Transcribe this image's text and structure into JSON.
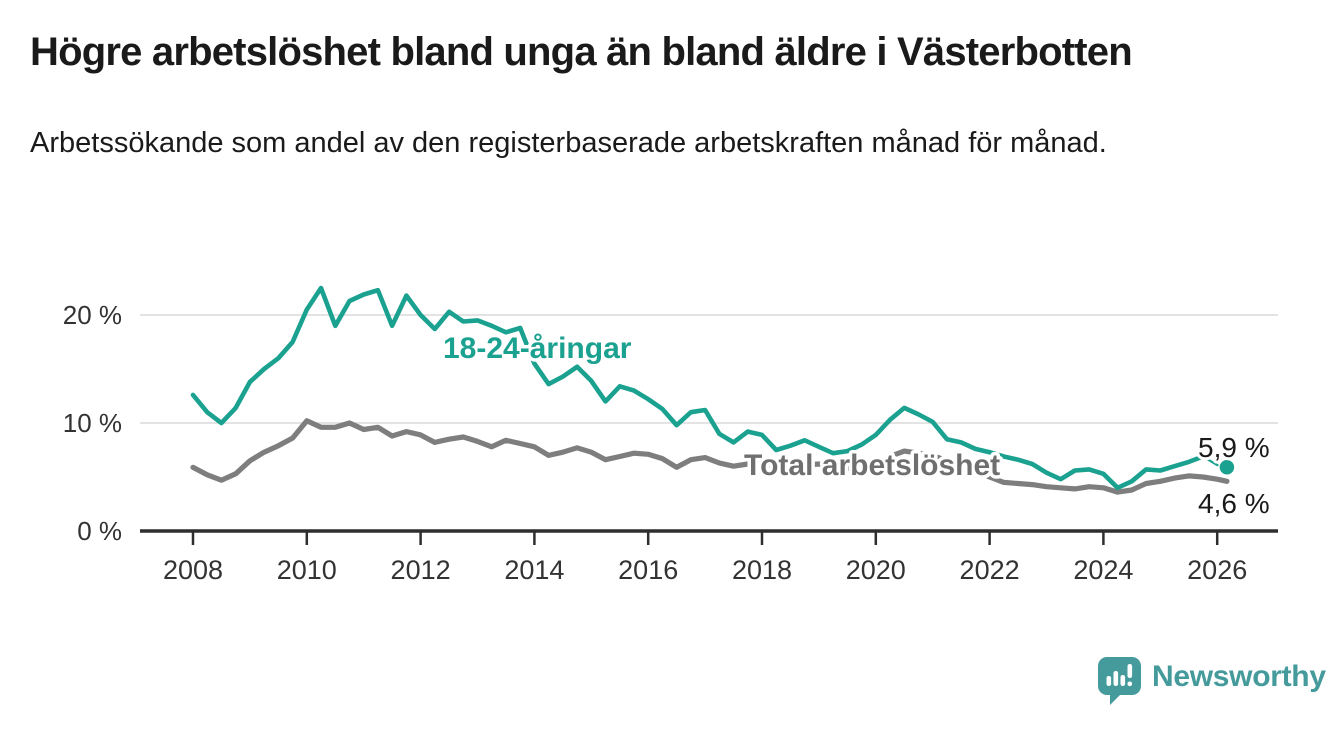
{
  "chart_data": {
    "type": "line",
    "title": "Högre arbetslöshet bland unga än bland äldre i Västerbotten",
    "subtitle": "Arbetssökande som andel av den registerbaserade arbetskraften månad för månad.",
    "xlabel": "",
    "ylabel": "",
    "y_unit": "%",
    "grid": "horizontal-only",
    "legend_position": "inline-labels",
    "xlim": [
      2007.1,
      2027.1
    ],
    "ylim": [
      0,
      23.5
    ],
    "x_ticks": [
      2008,
      2010,
      2012,
      2014,
      2016,
      2018,
      2020,
      2022,
      2024,
      2026
    ],
    "y_ticks": [
      {
        "value": 0,
        "label": "0 %"
      },
      {
        "value": 10,
        "label": "10 %"
      },
      {
        "value": 20,
        "label": "20 %"
      }
    ],
    "x": [
      2008,
      2008.25,
      2008.5,
      2008.75,
      2009,
      2009.25,
      2009.5,
      2009.75,
      2010,
      2010.25,
      2010.5,
      2010.75,
      2011,
      2011.25,
      2011.5,
      2011.75,
      2012,
      2012.25,
      2012.5,
      2012.75,
      2013,
      2013.25,
      2013.5,
      2013.75,
      2014,
      2014.25,
      2014.5,
      2014.75,
      2015,
      2015.25,
      2015.5,
      2015.75,
      2016,
      2016.25,
      2016.5,
      2016.75,
      2017,
      2017.25,
      2017.5,
      2017.75,
      2018,
      2018.25,
      2018.5,
      2018.75,
      2019,
      2019.25,
      2019.5,
      2019.75,
      2020,
      2020.25,
      2020.5,
      2020.75,
      2021,
      2021.25,
      2021.5,
      2021.75,
      2022,
      2022.25,
      2022.5,
      2022.75,
      2023,
      2023.25,
      2023.5,
      2023.75,
      2024,
      2024.25,
      2024.5,
      2024.75,
      2025,
      2025.25,
      2025.5,
      2025.75,
      2026,
      2026.17
    ],
    "series": [
      {
        "id": "youth",
        "name": "18-24-åringar",
        "color": "#1aa18f",
        "end_label": "5,9 %",
        "end_value": 5.9,
        "values": [
          12.6,
          11,
          10,
          11.4,
          13.8,
          15,
          16,
          17.5,
          20.5,
          22.5,
          19,
          21.3,
          21.9,
          22.3,
          19,
          21.8,
          20,
          18.7,
          20.3,
          19.4,
          19.5,
          19,
          18.4,
          18.8,
          15.5,
          13.6,
          14.3,
          15.2,
          13.9,
          12,
          13.4,
          13,
          12.2,
          11.3,
          9.8,
          11,
          11.2,
          9,
          8.2,
          9.2,
          8.9,
          7.5,
          7.9,
          8.4,
          7.8,
          7.2,
          7.4,
          8,
          8.9,
          10.3,
          11.4,
          10.8,
          10.1,
          8.5,
          8.2,
          7.6,
          7.3,
          6.9,
          6.6,
          6.2,
          5.4,
          4.8,
          5.6,
          5.7,
          5.3,
          4,
          4.6,
          5.7,
          5.6,
          6,
          6.4,
          6.9,
          6.1,
          5.9
        ]
      },
      {
        "id": "total",
        "name": "Total arbetslöshet",
        "color": "#7e7e7e",
        "end_label": "4,6 %",
        "end_value": 4.6,
        "values": [
          5.9,
          5.2,
          4.7,
          5.3,
          6.5,
          7.3,
          7.9,
          8.6,
          10.2,
          9.6,
          9.6,
          10,
          9.4,
          9.6,
          8.8,
          9.2,
          8.9,
          8.2,
          8.5,
          8.7,
          8.3,
          7.8,
          8.4,
          8.1,
          7.8,
          7,
          7.3,
          7.7,
          7.3,
          6.6,
          6.9,
          7.2,
          7.1,
          6.7,
          5.9,
          6.6,
          6.8,
          6.3,
          6,
          6.2,
          6.3,
          5.9,
          5.8,
          6.1,
          6.2,
          5.9,
          5.8,
          6,
          6.2,
          6.9,
          7.4,
          7.2,
          7,
          6.5,
          6.1,
          5.6,
          5,
          4.5,
          4.4,
          4.3,
          4.1,
          4,
          3.9,
          4.1,
          4,
          3.6,
          3.8,
          4.4,
          4.6,
          4.9,
          5.1,
          5,
          4.8,
          4.6
        ]
      }
    ]
  },
  "footer": {
    "brand": "Newsworthy",
    "brand_color": "#459a9b"
  },
  "colors": {
    "accent_teal": "#1aa18f",
    "series_gray": "#7e7e7e",
    "axis": "#2e2e2e",
    "gridline": "#dadada",
    "text_dark": "#1a1a1a",
    "tick_text": "#333333"
  }
}
